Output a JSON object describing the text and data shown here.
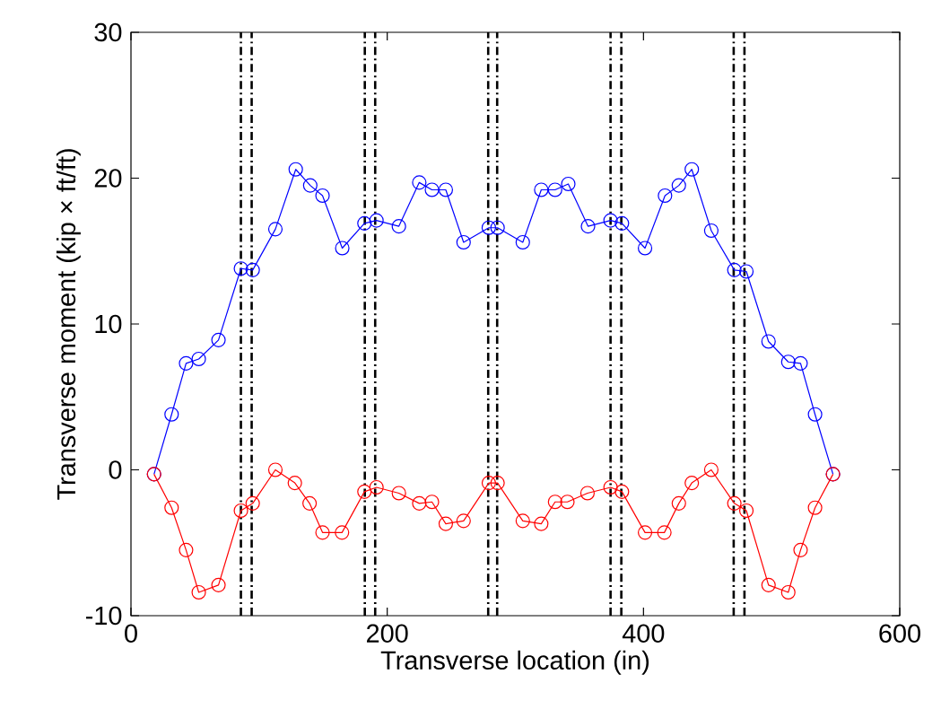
{
  "chart_data": {
    "type": "line",
    "xlabel": "Transverse location (in)",
    "ylabel": "Transverse moment (kip × ft/ft)",
    "xlim": [
      0,
      600
    ],
    "ylim": [
      -10,
      30
    ],
    "xticks": [
      0,
      200,
      400,
      600
    ],
    "yticks": [
      -10,
      0,
      10,
      20,
      30
    ],
    "grid": false,
    "marker": "circle",
    "line_style": "solid",
    "series": [
      {
        "color": "#0000ff",
        "x": [
          18.0,
          31.7,
          43.0,
          52.9,
          68.3,
          85.8,
          95.0,
          112.7,
          128.6,
          139.9,
          149.5,
          164.9,
          182.2,
          191.6,
          209.1,
          225.0,
          234.9,
          245.7,
          259.6,
          279.3,
          286.1,
          305.8,
          320.2,
          331.0,
          341.3,
          356.7,
          374.3,
          383.2,
          401.2,
          416.8,
          427.6,
          437.7,
          452.9,
          470.9,
          480.3,
          497.6,
          513.0,
          522.6,
          533.9,
          547.9
        ],
        "values": [
          -0.3,
          3.8,
          7.3,
          7.6,
          8.9,
          13.8,
          13.7,
          16.5,
          20.6,
          19.5,
          18.8,
          15.2,
          16.9,
          17.1,
          16.7,
          19.7,
          19.2,
          19.2,
          15.6,
          16.6,
          16.6,
          15.6,
          19.2,
          19.2,
          19.6,
          16.7,
          17.1,
          16.9,
          15.2,
          18.8,
          19.5,
          20.6,
          16.4,
          13.7,
          13.6,
          8.8,
          7.4,
          7.3,
          3.8,
          -0.3
        ]
      },
      {
        "color": "#ff0000",
        "x": [
          18.0,
          31.7,
          43.0,
          52.9,
          68.3,
          85.8,
          95.0,
          112.7,
          127.9,
          139.4,
          149.5,
          164.7,
          182.2,
          191.6,
          209.1,
          225.0,
          234.9,
          245.7,
          259.6,
          279.3,
          286.1,
          305.8,
          320.2,
          331.0,
          340.6,
          356.3,
          374.3,
          383.2,
          401.2,
          416.3,
          427.6,
          437.7,
          452.9,
          470.9,
          480.3,
          497.6,
          513.0,
          522.6,
          533.9,
          547.9
        ],
        "values": [
          -0.3,
          -2.6,
          -5.5,
          -8.4,
          -7.9,
          -2.8,
          -2.3,
          0.0,
          -0.9,
          -2.3,
          -4.3,
          -4.3,
          -1.5,
          -1.2,
          -1.6,
          -2.3,
          -2.2,
          -3.7,
          -3.5,
          -0.9,
          -0.9,
          -3.5,
          -3.7,
          -2.2,
          -2.2,
          -1.6,
          -1.2,
          -1.5,
          -4.3,
          -4.3,
          -2.3,
          -0.9,
          0.0,
          -2.3,
          -2.8,
          -7.9,
          -8.4,
          -5.5,
          -2.6,
          -0.3
        ]
      }
    ],
    "ref_lines": [
      {
        "axis": "x",
        "value": 85.8,
        "color": "#000000",
        "line_style": "dashdot"
      },
      {
        "axis": "x",
        "value": 94.2,
        "color": "#000000",
        "line_style": "dashdot"
      },
      {
        "axis": "x",
        "value": 182.5,
        "color": "#000000",
        "line_style": "dashdot"
      },
      {
        "axis": "x",
        "value": 190.6,
        "color": "#000000",
        "line_style": "dashdot"
      },
      {
        "axis": "x",
        "value": 278.8,
        "color": "#000000",
        "line_style": "dashdot"
      },
      {
        "axis": "x",
        "value": 285.8,
        "color": "#000000",
        "line_style": "dashdot"
      },
      {
        "axis": "x",
        "value": 374.3,
        "color": "#000000",
        "line_style": "dashdot"
      },
      {
        "axis": "x",
        "value": 382.7,
        "color": "#000000",
        "line_style": "dashdot"
      },
      {
        "axis": "x",
        "value": 470.4,
        "color": "#000000",
        "line_style": "dashdot"
      },
      {
        "axis": "x",
        "value": 478.8,
        "color": "#000000",
        "line_style": "dashdot"
      }
    ]
  }
}
